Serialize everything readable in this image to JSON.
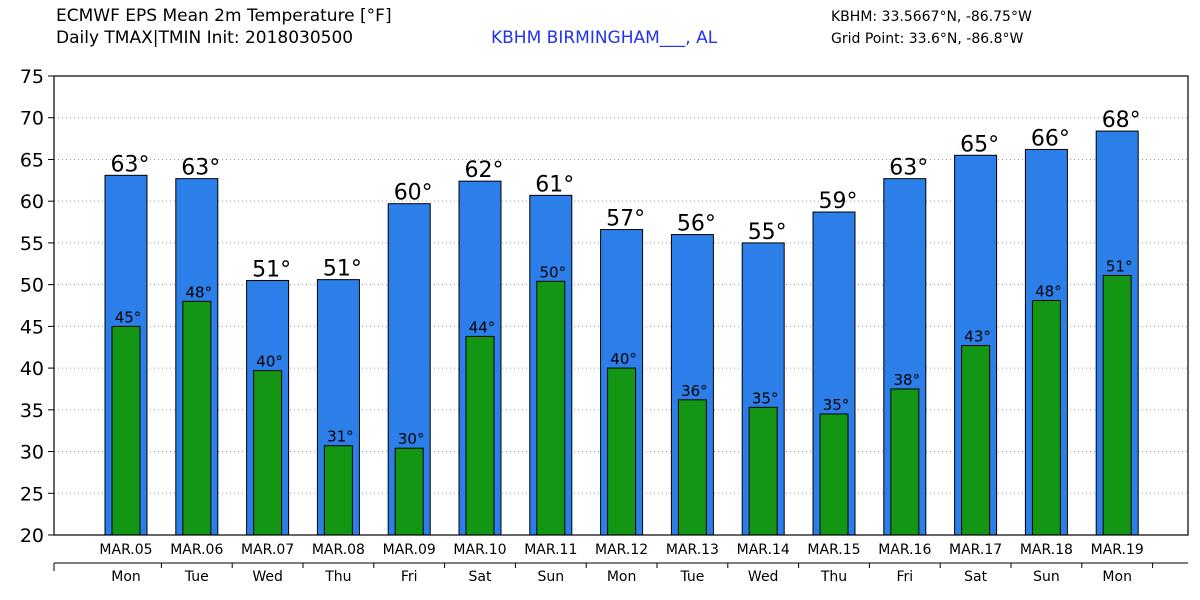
{
  "header": {
    "title_line1": "ECMWF EPS Mean 2m Temperature [°F]",
    "title_line2": "Daily TMAX|TMIN Init: 2018030500",
    "station": "KBHM BIRMINGHAM___, AL",
    "station_coords": "KBHM: 33.5667°N, -86.75°W",
    "grid_point": "Grid Point: 33.6°N, -86.8°W"
  },
  "colors": {
    "tmax_bar": "#2c7fe8",
    "tmin_bar": "#139613",
    "station_text": "#2233ee"
  },
  "chart_data": {
    "type": "bar",
    "categories": [
      "MAR.05",
      "MAR.06",
      "MAR.07",
      "MAR.08",
      "MAR.09",
      "MAR.10",
      "MAR.11",
      "MAR.12",
      "MAR.13",
      "MAR.14",
      "MAR.15",
      "MAR.16",
      "MAR.17",
      "MAR.18",
      "MAR.19"
    ],
    "weekdays": [
      "Mon",
      "Tue",
      "Wed",
      "Thu",
      "Fri",
      "Sat",
      "Sun",
      "Mon",
      "Tue",
      "Wed",
      "Thu",
      "Fri",
      "Sat",
      "Sun",
      "Mon"
    ],
    "series": [
      {
        "values": [
          63.1,
          62.7,
          50.5,
          50.6,
          59.7,
          62.4,
          60.7,
          56.6,
          56.0,
          55.0,
          58.7,
          62.7,
          65.5,
          66.2,
          68.4
        ],
        "labels": [
          "63°",
          "63°",
          "51°",
          "51°",
          "60°",
          "62°",
          "61°",
          "57°",
          "56°",
          "55°",
          "59°",
          "63°",
          "65°",
          "66°",
          "68°"
        ]
      },
      {
        "values": [
          45.0,
          48.0,
          39.7,
          30.7,
          30.4,
          43.8,
          50.4,
          40.0,
          36.2,
          35.3,
          34.5,
          37.5,
          42.7,
          48.1,
          51.1
        ],
        "labels": [
          "45°",
          "48°",
          "40°",
          "31°",
          "30°",
          "44°",
          "50°",
          "40°",
          "36°",
          "35°",
          "35°",
          "38°",
          "43°",
          "48°",
          "51°"
        ]
      }
    ],
    "yticks": [
      "20",
      "25",
      "30",
      "35",
      "40",
      "45",
      "50",
      "55",
      "60",
      "65",
      "70",
      "75"
    ],
    "ylim": [
      20,
      75
    ],
    "grid": true
  }
}
